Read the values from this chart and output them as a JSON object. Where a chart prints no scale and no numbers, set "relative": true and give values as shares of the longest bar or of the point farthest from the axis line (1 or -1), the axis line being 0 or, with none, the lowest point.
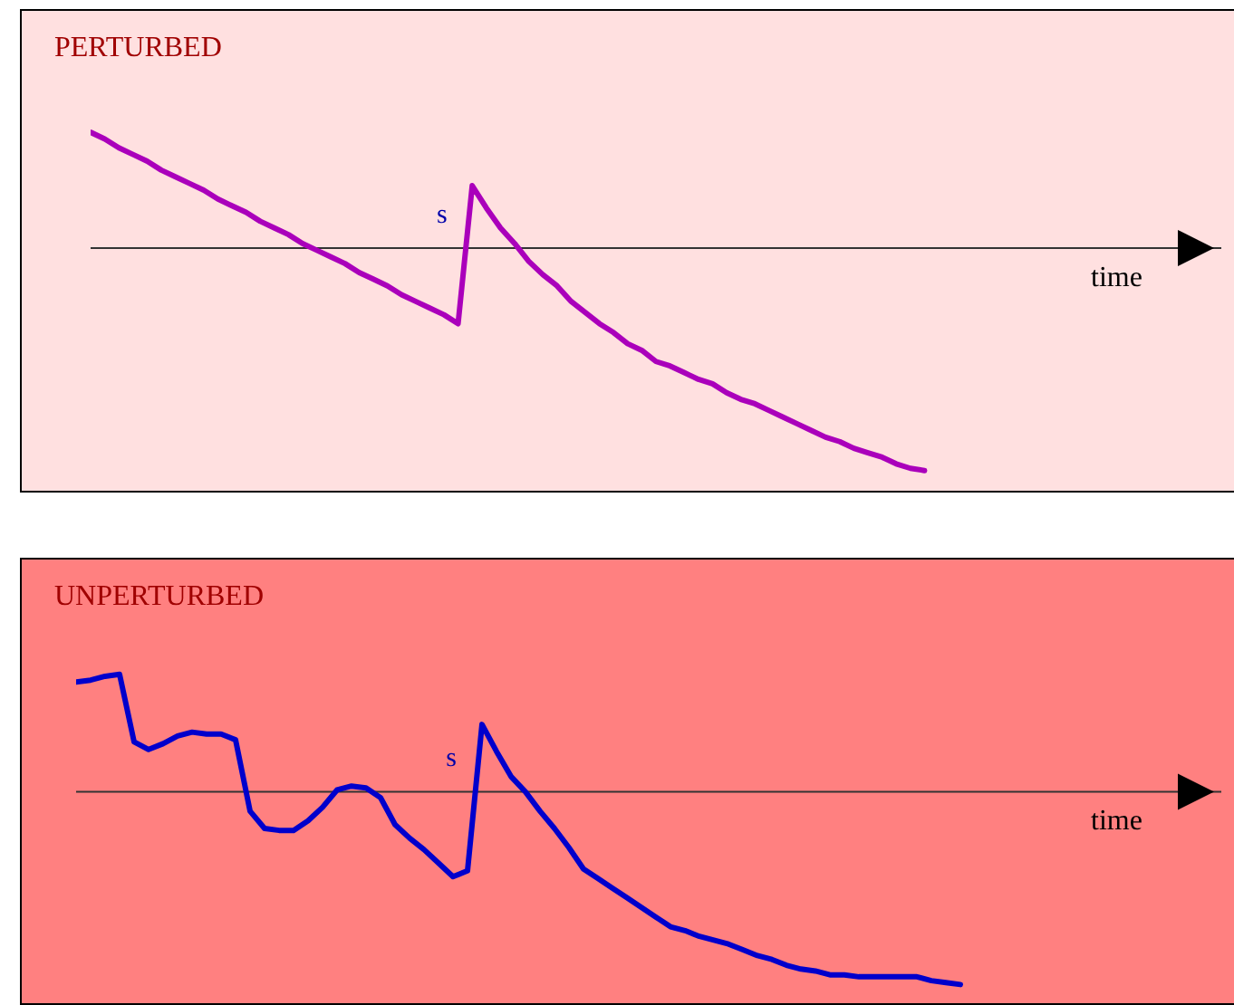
{
  "chart_data": [
    {
      "type": "line",
      "title": "PERTURBED",
      "xlabel": "time",
      "relative": true,
      "tick_labels": false,
      "marker": "none",
      "line_style": "solid",
      "categories": [
        null,
        null,
        null,
        null,
        null,
        null,
        null,
        null,
        null,
        null,
        null,
        null,
        null,
        null,
        null,
        null,
        null,
        null,
        null,
        null,
        null,
        null,
        null,
        null,
        null,
        null,
        null,
        null,
        null,
        null,
        null,
        null,
        null,
        null,
        null,
        null,
        null,
        null,
        null,
        null,
        null,
        null,
        null,
        null,
        null,
        null,
        null,
        null,
        null,
        null,
        null,
        null,
        null,
        null,
        null,
        null,
        null,
        null,
        null,
        null,
        null,
        null,
        null,
        null,
        null,
        null,
        null,
        null,
        null,
        null,
        null,
        null,
        null,
        null,
        null,
        null,
        null,
        null,
        null,
        null,
        null
      ],
      "series": [
        {
          "color": "#aa00bb",
          "values": [
            0.52,
            0.49,
            0.45,
            0.42,
            0.39,
            0.35,
            0.32,
            0.29,
            0.26,
            0.22,
            0.19,
            0.16,
            0.12,
            0.09,
            0.06,
            0.02,
            -0.01,
            -0.04,
            -0.07,
            -0.11,
            -0.14,
            -0.17,
            -0.21,
            -0.24,
            -0.27,
            -0.3,
            -0.34,
            0.28,
            0.18,
            0.09,
            0.02,
            -0.06,
            -0.12,
            -0.17,
            -0.24,
            -0.29,
            -0.34,
            -0.38,
            -0.43,
            -0.46,
            -0.51,
            -0.53,
            -0.56,
            -0.59,
            -0.61,
            -0.65,
            -0.68,
            -0.7,
            -0.73,
            -0.76,
            -0.79,
            -0.82,
            -0.85,
            -0.87,
            -0.9,
            -0.92,
            -0.94,
            -0.97,
            -0.99,
            -1,
            null,
            null,
            null,
            null,
            null,
            null,
            null,
            null,
            null,
            null,
            null,
            null,
            null,
            null,
            null,
            null,
            null,
            null,
            null,
            null,
            null
          ]
        }
      ],
      "annotations": [
        "s"
      ]
    },
    {
      "type": "line",
      "title": "UNPERTURBED",
      "xlabel": "time",
      "relative": true,
      "tick_labels": false,
      "marker": "none",
      "line_style": "solid",
      "categories": [
        null,
        null,
        null,
        null,
        null,
        null,
        null,
        null,
        null,
        null,
        null,
        null,
        null,
        null,
        null,
        null,
        null,
        null,
        null,
        null,
        null,
        null,
        null,
        null,
        null,
        null,
        null,
        null,
        null,
        null,
        null,
        null,
        null,
        null,
        null,
        null,
        null,
        null,
        null,
        null,
        null,
        null,
        null,
        null,
        null,
        null,
        null,
        null,
        null,
        null,
        null,
        null,
        null,
        null,
        null,
        null,
        null,
        null,
        null,
        null,
        null,
        null,
        null,
        null,
        null,
        null,
        null,
        null,
        null,
        null,
        null,
        null,
        null,
        null,
        null,
        null,
        null,
        null,
        null,
        null
      ],
      "series": [
        {
          "color": "#0000cc",
          "values": [
            0.57,
            0.58,
            0.6,
            0.61,
            0.26,
            0.22,
            0.25,
            0.29,
            0.31,
            0.3,
            0.3,
            0.27,
            -0.1,
            -0.19,
            -0.2,
            -0.2,
            -0.15,
            -0.08,
            0.01,
            0.03,
            0.02,
            -0.03,
            -0.17,
            -0.24,
            -0.3,
            -0.37,
            -0.44,
            -0.41,
            0.35,
            0.21,
            0.08,
            0,
            -0.1,
            -0.19,
            -0.29,
            -0.4,
            -0.45,
            -0.5,
            -0.55,
            -0.6,
            -0.65,
            -0.7,
            -0.72,
            -0.75,
            -0.77,
            -0.79,
            -0.82,
            -0.85,
            -0.87,
            -0.9,
            -0.92,
            -0.93,
            -0.95,
            -0.95,
            -0.96,
            -0.96,
            -0.96,
            -0.96,
            -0.96,
            -0.98,
            -0.99,
            -1,
            null,
            null,
            null,
            null,
            null,
            null,
            null,
            null,
            null,
            null,
            null,
            null,
            null,
            null,
            null,
            null,
            null,
            null
          ]
        }
      ],
      "annotations": [
        "s"
      ]
    }
  ]
}
